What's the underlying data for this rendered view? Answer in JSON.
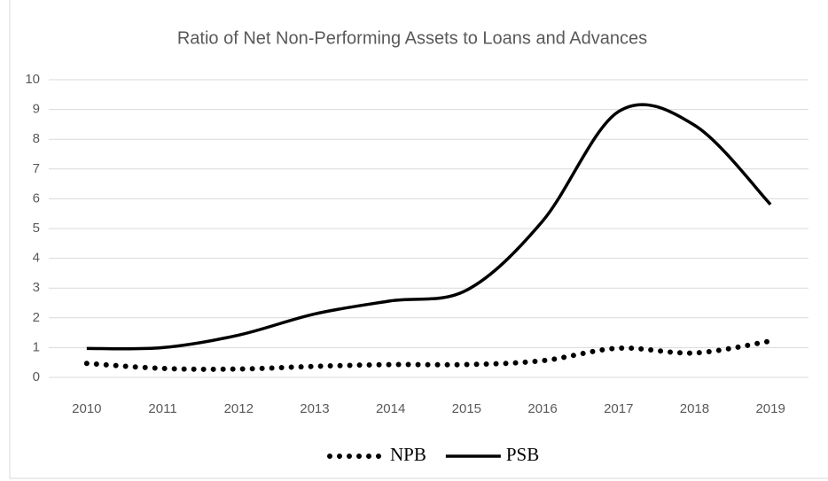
{
  "chart_data": {
    "type": "line",
    "title": "Ratio of Net Non-Performing Assets to Loans and Advances",
    "categories": [
      "2010",
      "2011",
      "2012",
      "2013",
      "2014",
      "2015",
      "2016",
      "2017",
      "2018",
      "2019"
    ],
    "series": [
      {
        "name": "NPB",
        "color": "#000000",
        "style": "dotted",
        "values": [
          0.47,
          0.3,
          0.28,
          0.37,
          0.43,
          0.43,
          0.56,
          0.98,
          0.82,
          1.22
        ]
      },
      {
        "name": "PSB",
        "color": "#000000",
        "style": "solid",
        "values": [
          0.97,
          1.0,
          1.42,
          2.13,
          2.57,
          2.93,
          5.25,
          8.93,
          8.47,
          5.81
        ]
      }
    ],
    "ylim": [
      0,
      10
    ],
    "yticks": [
      0,
      1,
      2,
      3,
      4,
      5,
      6,
      7,
      8,
      9,
      10
    ],
    "grid": true,
    "legend": "bottom"
  }
}
